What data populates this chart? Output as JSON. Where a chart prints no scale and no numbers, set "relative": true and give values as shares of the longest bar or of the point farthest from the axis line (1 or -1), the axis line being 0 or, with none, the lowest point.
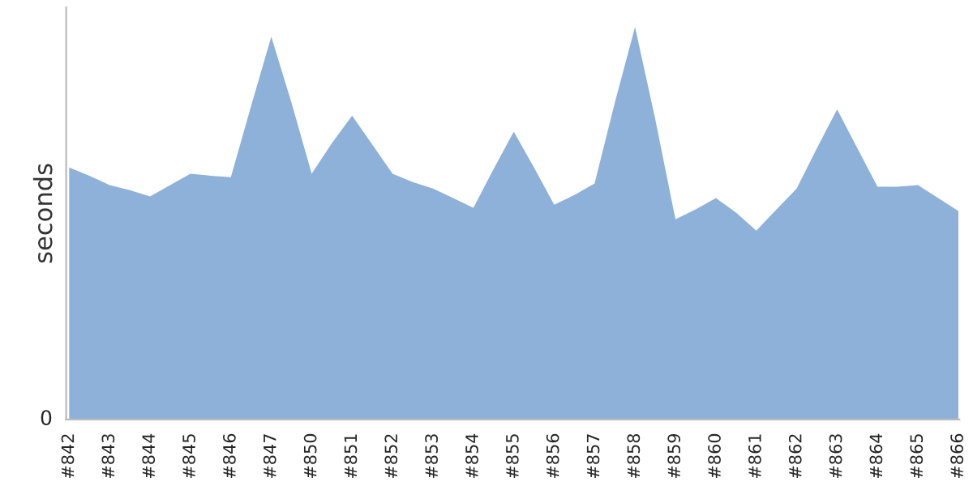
{
  "chart_data": {
    "type": "area",
    "ylabel": "seconds",
    "relative": true,
    "annotations": [
      "0"
    ],
    "grid": false,
    "legend": false,
    "categories": [
      "#842",
      null,
      "#843",
      null,
      "#844",
      null,
      "#845",
      null,
      "#846",
      null,
      "#847",
      null,
      "#850",
      null,
      "#851",
      null,
      "#852",
      null,
      "#853",
      null,
      "#854",
      null,
      "#855",
      null,
      "#856",
      null,
      "#857",
      null,
      "#858",
      null,
      "#859",
      null,
      "#860",
      null,
      "#861",
      null,
      "#862",
      null,
      "#863",
      null,
      "#864",
      null,
      "#865",
      null,
      "#866"
    ],
    "series": [
      {
        "color": "#8eb1d9",
        "values": [
          0.642,
          0.621,
          0.597,
          0.584,
          0.568,
          0.597,
          0.626,
          0.621,
          0.617,
          0.798,
          0.975,
          0.807,
          0.626,
          0.704,
          0.774,
          0.7,
          0.626,
          0.605,
          0.588,
          0.564,
          0.539,
          0.638,
          0.733,
          0.642,
          0.547,
          0.572,
          0.601,
          0.807,
          1,
          0.765,
          0.51,
          0.535,
          0.564,
          0.527,
          0.481,
          0.535,
          0.588,
          0.691,
          0.79,
          0.691,
          0.593,
          0.593,
          0.597,
          0.564,
          0.531
        ]
      }
    ]
  }
}
